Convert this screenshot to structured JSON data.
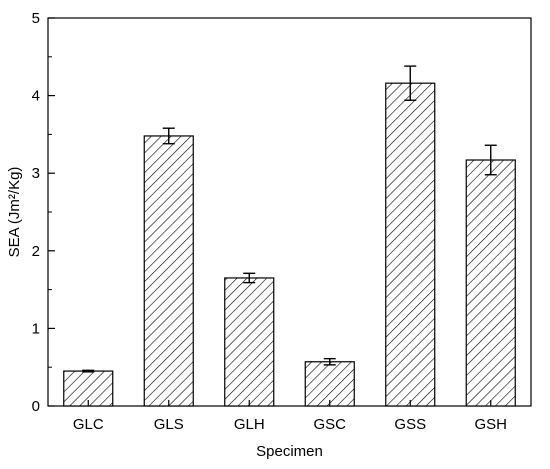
{
  "chart_data": {
    "type": "bar",
    "xlabel": "Specimen",
    "ylabel": "SEA (Jm²/Kg)",
    "ylim": [
      0,
      5
    ],
    "yticks": [
      0,
      1,
      2,
      3,
      4,
      5
    ],
    "categories": [
      "GLC",
      "GLS",
      "GLH",
      "GSC",
      "GSS",
      "GSH"
    ],
    "values": [
      0.45,
      3.48,
      1.65,
      0.57,
      4.16,
      3.17
    ],
    "errors": [
      0.01,
      0.1,
      0.06,
      0.04,
      0.22,
      0.19
    ],
    "bar_fill": "diagonal-hatch",
    "bar_color": "#000000",
    "grid": false,
    "legend": "none"
  }
}
